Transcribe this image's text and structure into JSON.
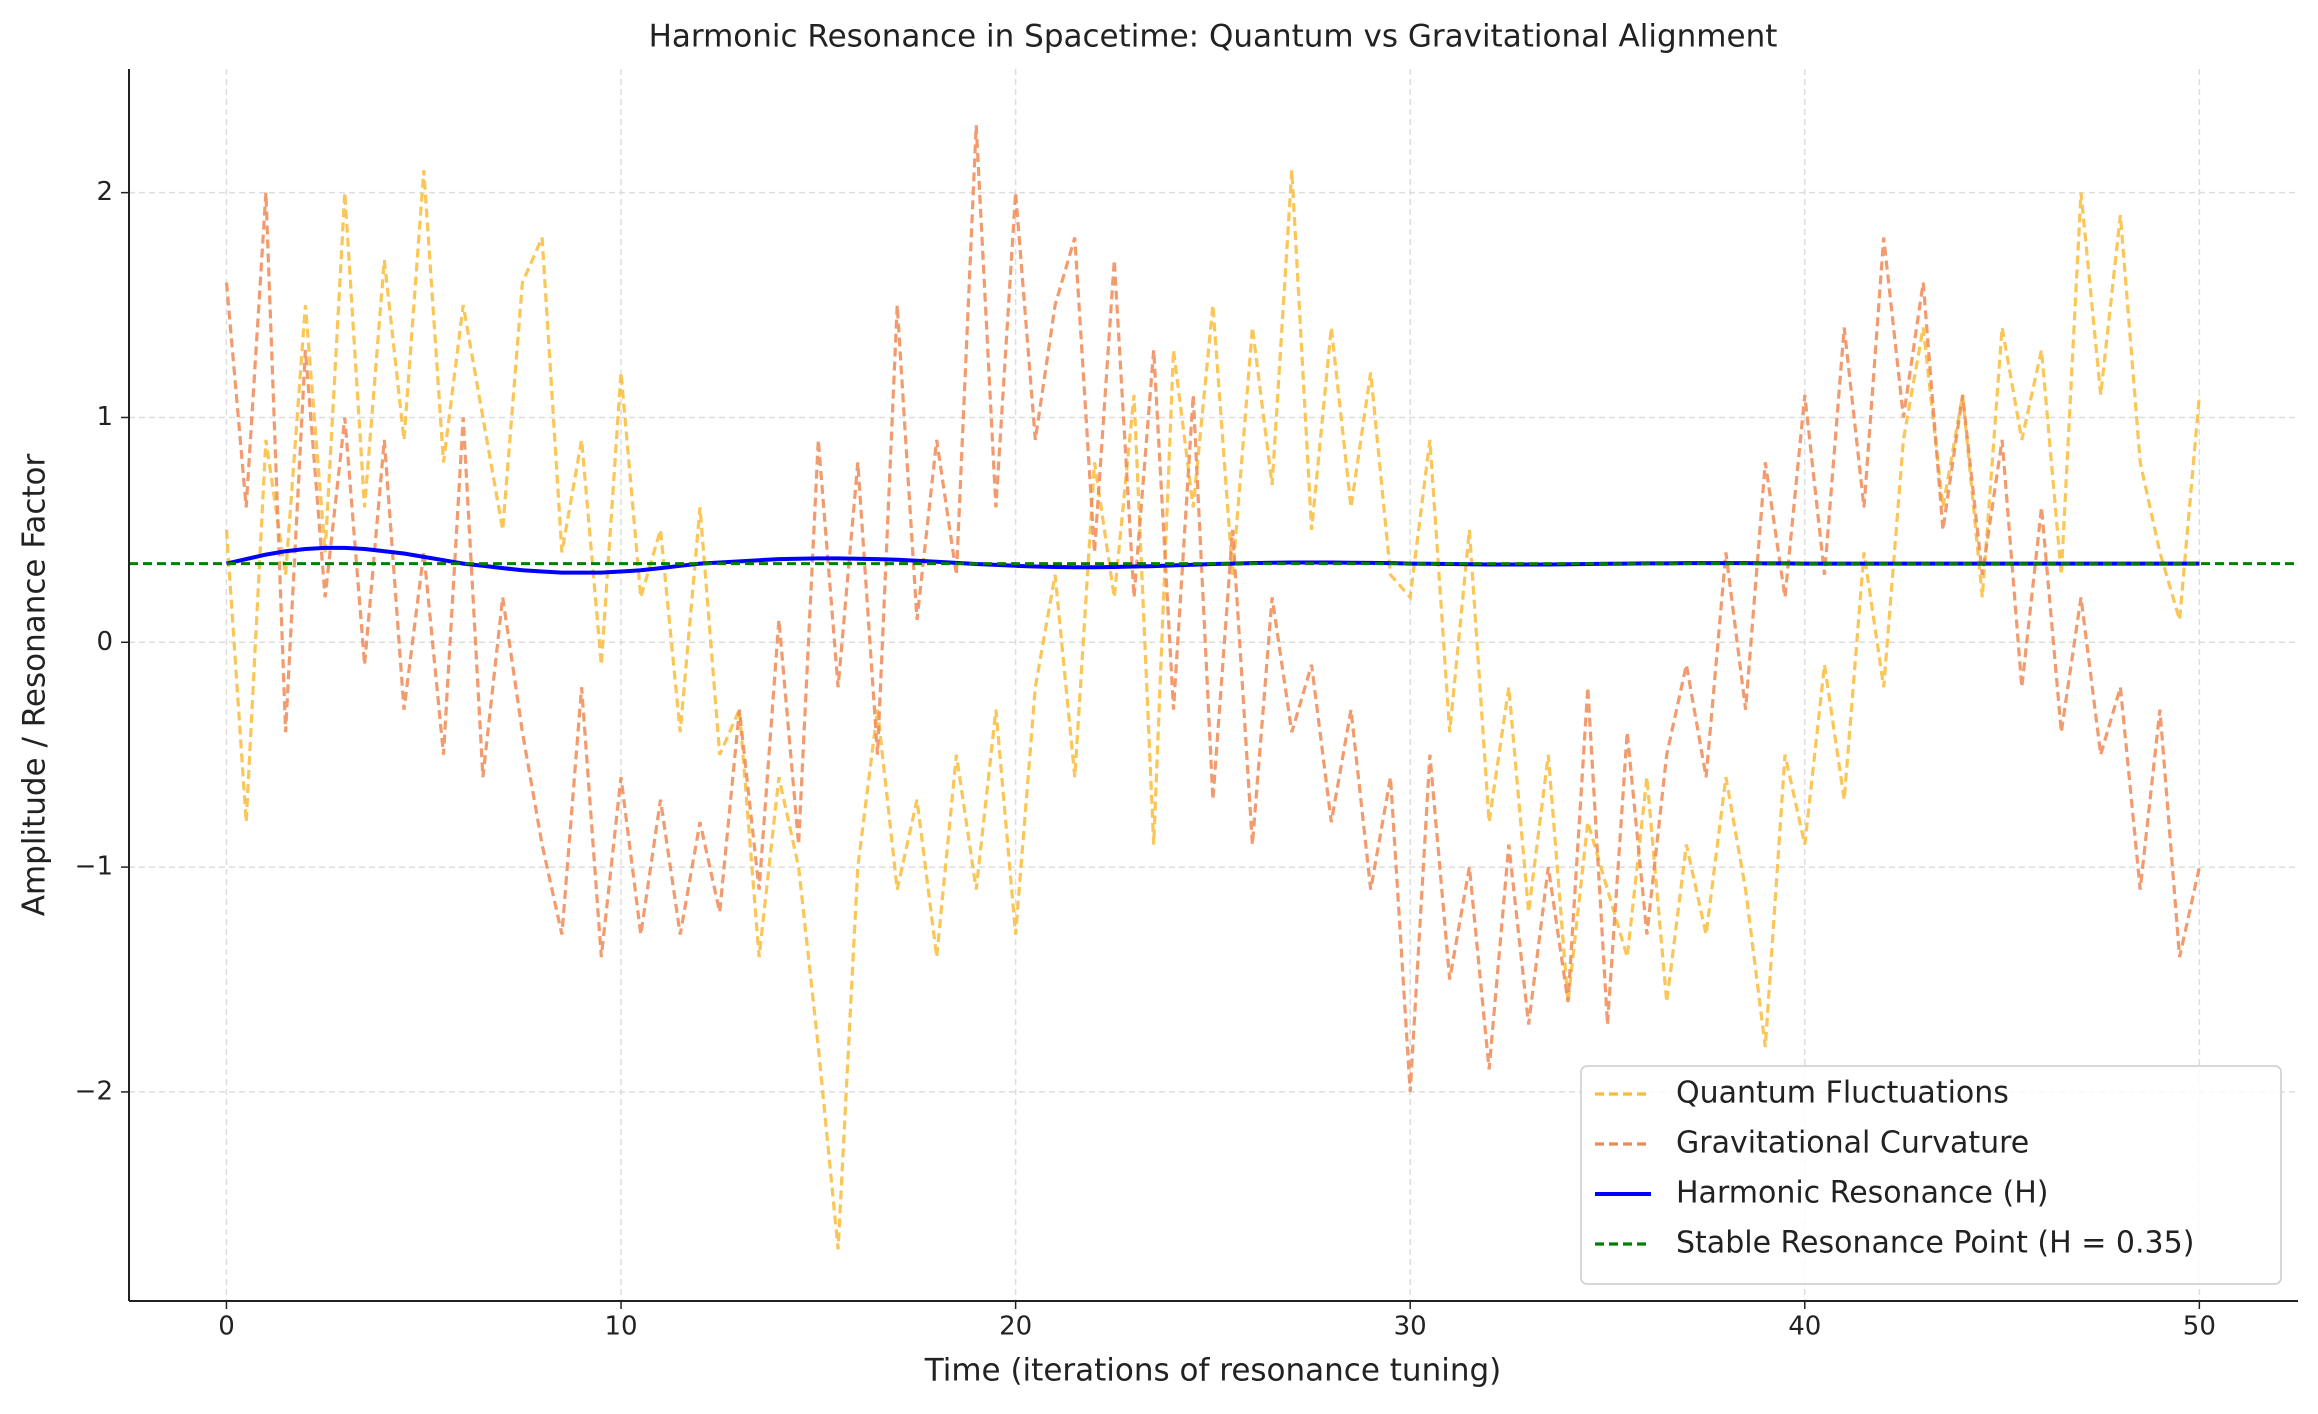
{
  "chart_data": {
    "type": "line",
    "title": "Harmonic Resonance in Spacetime: Quantum vs Gravitational Alignment",
    "xlabel": "Time (iterations of resonance tuning)",
    "ylabel": "Amplitude / Resonance Factor",
    "x": [
      0,
      0.5,
      1,
      1.5,
      2,
      2.5,
      3,
      3.5,
      4,
      4.5,
      5,
      5.5,
      6,
      6.5,
      7,
      7.5,
      8,
      8.5,
      9,
      9.5,
      10,
      10.5,
      11,
      11.5,
      12,
      12.5,
      13,
      13.5,
      14,
      14.5,
      15,
      15.5,
      16,
      16.5,
      17,
      17.5,
      18,
      18.5,
      19,
      19.5,
      20,
      20.5,
      21,
      21.5,
      22,
      22.5,
      23,
      23.5,
      24,
      24.5,
      25,
      25.5,
      26,
      26.5,
      27,
      27.5,
      28,
      28.5,
      29,
      29.5,
      30,
      30.5,
      31,
      31.5,
      32,
      32.5,
      33,
      33.5,
      34,
      34.5,
      35,
      35.5,
      36,
      36.5,
      37,
      37.5,
      38,
      38.5,
      39,
      39.5,
      40,
      40.5,
      41,
      41.5,
      42,
      42.5,
      43,
      43.5,
      44,
      44.5,
      45,
      45.5,
      46,
      46.5,
      47,
      47.5,
      48,
      48.5,
      49,
      49.5,
      50
    ],
    "series": [
      {
        "name": "Quantum Fluctuations",
        "color": "#f9bc3a",
        "linestyle": "dashed",
        "values": [
          0.5,
          -0.8,
          0.9,
          0.3,
          1.5,
          0.4,
          2.0,
          0.6,
          1.7,
          0.9,
          2.1,
          0.8,
          1.5,
          1.0,
          0.5,
          1.6,
          1.8,
          0.4,
          0.9,
          -0.1,
          1.2,
          0.2,
          0.5,
          -0.4,
          0.6,
          -0.5,
          -0.3,
          -1.4,
          -0.6,
          -1.0,
          -1.8,
          -2.7,
          -1.0,
          -0.3,
          -1.1,
          -0.7,
          -1.4,
          -0.5,
          -1.1,
          -0.3,
          -1.3,
          -0.2,
          0.3,
          -0.6,
          0.8,
          0.2,
          1.1,
          -0.9,
          1.3,
          0.6,
          1.5,
          0.3,
          1.4,
          0.7,
          2.1,
          0.5,
          1.4,
          0.6,
          1.2,
          0.3,
          0.2,
          0.9,
          -0.4,
          0.5,
          -0.8,
          -0.2,
          -1.2,
          -0.5,
          -1.6,
          -0.8,
          -1.1,
          -1.4,
          -0.6,
          -1.6,
          -0.9,
          -1.3,
          -0.6,
          -1.1,
          -1.8,
          -0.5,
          -0.9,
          -0.1,
          -0.7,
          0.4,
          -0.2,
          0.9,
          1.4,
          0.6,
          1.1,
          0.2,
          1.4,
          0.9,
          1.3,
          0.3,
          2.0,
          1.1,
          1.9,
          0.8,
          0.4,
          0.1,
          1.1
        ]
      },
      {
        "name": "Gravitational Curvature",
        "color": "#ef8a55",
        "linestyle": "dashed",
        "values": [
          1.6,
          0.6,
          2.0,
          -0.4,
          1.3,
          0.2,
          1.0,
          -0.1,
          0.9,
          -0.3,
          0.4,
          -0.5,
          1.0,
          -0.6,
          0.2,
          -0.4,
          -0.9,
          -1.3,
          -0.2,
          -1.4,
          -0.6,
          -1.3,
          -0.7,
          -1.3,
          -0.8,
          -1.2,
          -0.3,
          -1.1,
          0.1,
          -0.9,
          0.9,
          -0.2,
          0.8,
          -0.5,
          1.5,
          0.1,
          0.9,
          0.3,
          2.3,
          0.6,
          2.0,
          0.9,
          1.5,
          1.8,
          0.4,
          1.7,
          0.2,
          1.3,
          -0.3,
          1.1,
          -0.7,
          0.5,
          -0.9,
          0.2,
          -0.4,
          -0.1,
          -0.8,
          -0.3,
          -1.1,
          -0.6,
          -2.0,
          -0.5,
          -1.5,
          -1.0,
          -1.9,
          -0.9,
          -1.7,
          -1.0,
          -1.6,
          -0.2,
          -1.7,
          -0.4,
          -1.3,
          -0.5,
          -0.1,
          -0.6,
          0.4,
          -0.3,
          0.8,
          0.2,
          1.1,
          0.3,
          1.4,
          0.6,
          1.8,
          1.0,
          1.6,
          0.5,
          1.1,
          0.3,
          0.9,
          -0.2,
          0.6,
          -0.4,
          0.2,
          -0.5,
          -0.2,
          -1.1,
          -0.3,
          -1.4,
          -1.0
        ]
      },
      {
        "name": "Harmonic Resonance (H)",
        "color": "#0000ff",
        "linestyle": "solid",
        "values": [
          0.35,
          0.37,
          0.39,
          0.405,
          0.415,
          0.42,
          0.42,
          0.415,
          0.405,
          0.395,
          0.38,
          0.365,
          0.35,
          0.34,
          0.33,
          0.32,
          0.315,
          0.31,
          0.31,
          0.31,
          0.315,
          0.32,
          0.33,
          0.34,
          0.35,
          0.355,
          0.36,
          0.365,
          0.37,
          0.372,
          0.373,
          0.373,
          0.372,
          0.37,
          0.367,
          0.363,
          0.358,
          0.353,
          0.348,
          0.344,
          0.34,
          0.337,
          0.335,
          0.334,
          0.334,
          0.335,
          0.337,
          0.339,
          0.342,
          0.345,
          0.348,
          0.35,
          0.352,
          0.354,
          0.355,
          0.355,
          0.355,
          0.354,
          0.353,
          0.352,
          0.35,
          0.349,
          0.348,
          0.347,
          0.346,
          0.346,
          0.346,
          0.346,
          0.347,
          0.348,
          0.349,
          0.35,
          0.351,
          0.351,
          0.352,
          0.352,
          0.352,
          0.352,
          0.351,
          0.351,
          0.35,
          0.35,
          0.35,
          0.35,
          0.35,
          0.35,
          0.35,
          0.35,
          0.35,
          0.35,
          0.35,
          0.35,
          0.35,
          0.35,
          0.35,
          0.35,
          0.35,
          0.35,
          0.35,
          0.35,
          0.35
        ]
      }
    ],
    "reference_line": {
      "name": "Stable Resonance Point (H = 0.35)",
      "value": 0.35,
      "color": "#008000",
      "linestyle": "dashed"
    },
    "xlim": [
      -2.47,
      52.5
    ],
    "ylim": [
      -2.93,
      2.55
    ],
    "xticks": [
      0,
      10,
      20,
      30,
      40,
      50
    ],
    "yticks": [
      {
        "value": -2,
        "label": "−2"
      },
      {
        "value": -1,
        "label": "−1"
      },
      0,
      1,
      2
    ],
    "grid": true,
    "legend": "lower right"
  }
}
